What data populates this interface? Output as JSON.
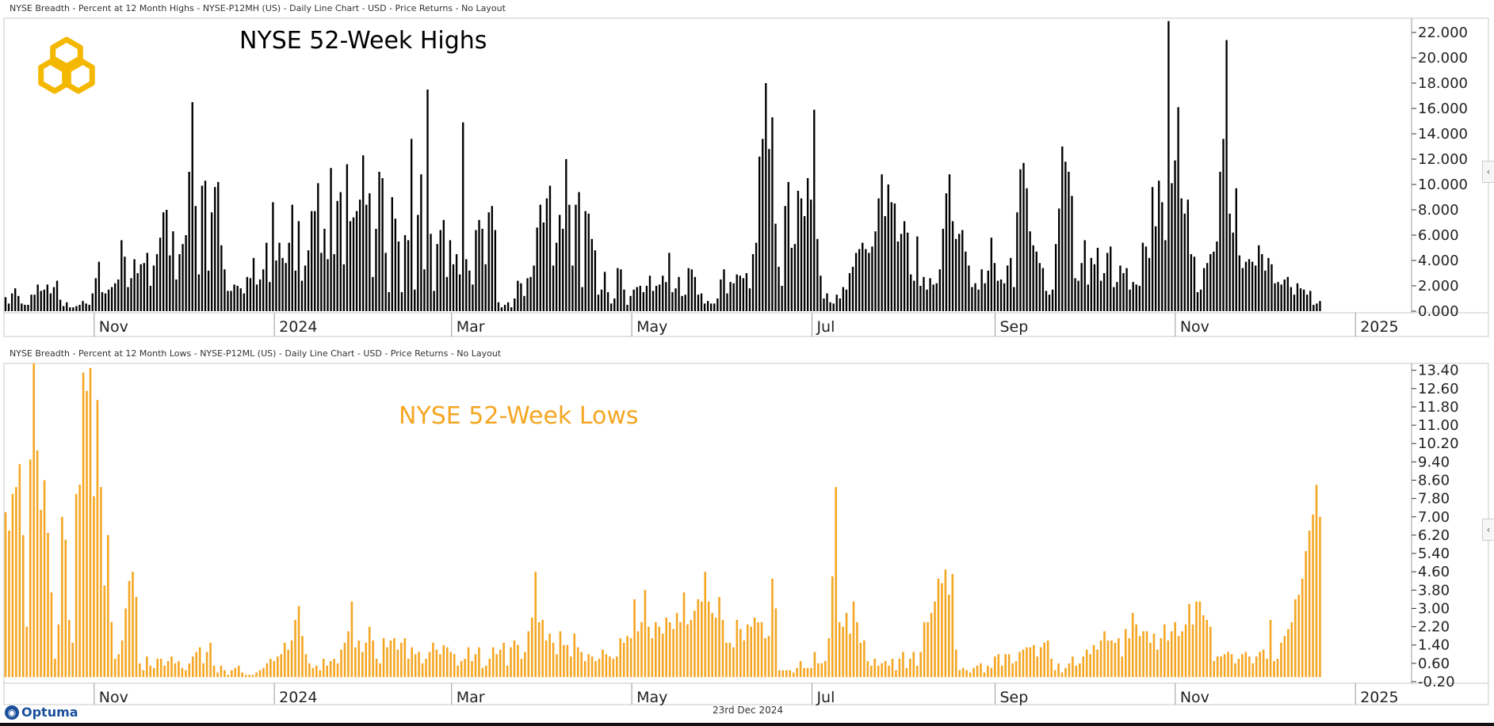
{
  "top": {
    "header": "NYSE Breadth - Percent at 12 Month Highs - NYSE-P12MH (US) - Daily Line Chart - USD - Price Returns - No Layout"
  },
  "bottom": {
    "header": "NYSE Breadth - Percent at 12 Month Lows - NYSE-P12ML (US) - Daily Line Chart - USD - Price Returns - No Layout"
  },
  "footer": {
    "date": "23rd Dec 2024",
    "brand": "Optuma"
  },
  "colors": {
    "highs": "#000000",
    "lows": "#f5a623",
    "logo": "#f5b800"
  },
  "icons": {
    "logo": "hexagon-knot-logo",
    "collapse": "chevron-left-icon",
    "brand": "optuma-logo-icon"
  },
  "chart_data": [
    {
      "type": "bar",
      "title": "NYSE 52-Week Highs",
      "x_tick_labels": [
        "Nov",
        "2024",
        "Mar",
        "May",
        "Jul",
        "Sep",
        "Nov",
        "2025"
      ],
      "y_tick_labels": [
        "22.000",
        "20.000",
        "18.000",
        "16.000",
        "14.000",
        "12.000",
        "10.000",
        "8.000",
        "6.000",
        "4.000",
        "2.000",
        "0.000"
      ],
      "ylim": [
        0,
        23
      ],
      "color": "#000000",
      "date_range": [
        "2023-10-02",
        "2024-12-20"
      ],
      "series": [
        {
          "values": [
            1.1,
            0.6,
            1.4,
            1.8,
            1.2,
            0.6,
            0.5,
            0.5,
            1.3,
            1.3,
            2.1,
            1.6,
            1.7,
            2.1,
            1.4,
            1.9,
            2.4,
            0.9,
            0.4,
            0.7,
            0.3,
            0.3,
            0.4,
            0.5,
            0.8,
            0.6,
            0.5,
            1.4,
            2.6,
            3.9,
            1.5,
            1.4,
            1.7,
            1.9,
            2.2,
            2.5,
            5.6,
            4.3,
            1.9,
            2.6,
            4.1,
            3.0,
            3.7,
            3.8,
            4.6,
            2.0,
            3.6,
            4.5,
            5.8,
            7.8,
            8.0,
            4.4,
            6.3,
            2.5,
            4.5,
            5.3,
            6.0,
            11.0,
            16.5,
            8.3,
            2.9,
            9.9,
            10.3,
            3.2,
            7.8,
            9.8,
            10.2,
            5.2,
            3.3,
            1.6,
            1.6,
            2.1,
            2.0,
            1.8,
            1.4,
            2.7,
            2.6,
            4.2,
            2.1,
            2.5,
            3.3,
            5.4,
            2.3,
            8.6,
            4.0,
            5.4,
            4.2,
            3.8,
            5.4,
            8.4,
            3.2,
            7.1,
            2.4,
            3.6,
            4.8,
            7.9,
            7.9,
            10.1,
            4.6,
            6.5,
            4.1,
            11.3,
            4.5,
            8.7,
            9.4,
            3.7,
            11.6,
            7.1,
            7.4,
            7.9,
            8.8,
            12.3,
            8.4,
            9.3,
            2.7,
            6.5,
            11.0,
            10.5,
            4.6,
            1.5,
            9.0,
            7.3,
            5.5,
            1.5,
            6.0,
            5.6,
            13.6,
            1.7,
            7.6,
            10.8,
            3.3,
            17.5,
            6.1,
            1.6,
            5.3,
            6.4,
            7.2,
            2.7,
            5.6,
            3.7,
            4.5,
            2.9,
            14.9,
            4.1,
            3.2,
            2.1,
            6.4,
            7.2,
            6.5,
            3.7,
            7.8,
            8.3,
            6.4,
            0.7,
            0.3,
            0.5,
            0.7,
            0.3,
            1.0,
            2.4,
            2.2,
            1.2,
            2.6,
            2.7,
            3.6,
            6.6,
            8.4,
            7.0,
            8.9,
            9.9,
            3.6,
            5.4,
            7.6,
            6.5,
            12.0,
            8.4,
            3.6,
            8.4,
            9.4,
            1.9,
            7.9,
            7.7,
            5.7,
            4.8,
            1.3,
            1.7,
            3.1,
            1.5,
            0.6,
            1.0,
            3.4,
            3.3,
            1.7,
            0.5,
            1.2,
            1.7,
            1.9,
            2.0,
            1.5,
            2.0,
            2.8,
            1.6,
            2.0,
            2.1,
            2.8,
            2.3,
            4.6,
            1.5,
            1.8,
            2.7,
            1.2,
            1.3,
            3.4,
            3.3,
            2.7,
            1.3,
            1.4,
            0.6,
            0.8,
            0.6,
            0.6,
            1.0,
            2.5,
            3.3,
            1.4,
            2.3,
            2.2,
            2.9,
            2.8,
            2.6,
            3.0,
            1.8,
            4.5,
            5.4,
            12.2,
            13.6,
            18.0,
            12.8,
            15.3,
            6.9,
            3.5,
            2.0,
            8.3,
            10.2,
            5.0,
            5.3,
            9.5,
            8.9,
            7.5,
            10.5,
            8.8,
            15.9,
            5.7,
            2.8,
            1.0,
            1.4,
            0.7,
            0.6,
            1.3,
            1.0,
            1.9,
            1.7,
            3.0,
            3.5,
            4.6,
            4.9,
            5.4,
            4.9,
            4.6,
            5.1,
            6.3,
            8.9,
            10.8,
            7.5,
            10.0,
            8.6,
            8.5,
            5.5,
            6.1,
            7.1,
            6.2,
            2.9,
            2.4,
            5.9,
            2.0,
            2.7,
            1.7,
            2.6,
            2.1,
            2.2,
            3.3,
            6.5,
            9.3,
            10.8,
            7.1,
            5.7,
            6.1,
            6.4,
            4.7,
            3.6,
            1.9,
            2.2,
            1.7,
            3.3,
            2.2,
            3.2,
            5.8,
            3.8,
            2.4,
            2.5,
            2.2,
            3.6,
            4.2,
            1.9,
            7.8,
            11.2,
            11.7,
            9.7,
            6.3,
            5.2,
            4.7,
            3.8,
            3.4,
            1.6,
            1.3,
            1.7,
            5.3,
            8.1,
            13.0,
            11.8,
            11.0,
            9.1,
            2.6,
            2.4,
            3.8,
            5.6,
            2.1,
            4.2,
            3.7,
            5.0,
            2.4,
            3.0,
            4.6,
            5.1,
            1.9,
            2.3,
            3.6,
            3.0,
            3.4,
            1.7,
            2.3,
            2.1,
            2.0,
            5.4,
            5.1,
            4.2,
            9.8,
            6.7,
            10.3,
            8.6,
            5.6,
            22.9,
            10.1,
            11.9,
            16.1,
            8.9,
            7.7,
            8.8,
            4.5,
            4.3,
            1.5,
            1.7,
            3.4,
            3.8,
            4.5,
            4.7,
            5.5,
            11.0,
            13.6,
            21.4,
            7.7,
            6.2,
            9.7,
            4.4,
            3.4,
            3.9,
            4.1,
            3.9,
            3.6,
            5.2,
            4.5,
            3.2,
            4.2,
            3.7,
            2.2,
            2.3,
            2.1,
            2.5,
            2.7,
            1.9,
            1.3,
            2.2,
            1.8,
            1.7,
            1.3,
            1.6,
            0.5,
            0.6,
            0.8
          ]
        }
      ]
    },
    {
      "type": "bar",
      "title": "NYSE 52-Week Lows",
      "x_tick_labels": [
        "Nov",
        "2024",
        "Mar",
        "May",
        "Jul",
        "Sep",
        "Nov",
        "2025"
      ],
      "y_tick_labels": [
        "13.40",
        "12.60",
        "11.80",
        "11.00",
        "10.20",
        "9.40",
        "8.60",
        "7.80",
        "7.00",
        "6.20",
        "5.40",
        "4.60",
        "3.80",
        "3.00",
        "2.20",
        "1.40",
        "0.60",
        "-0.20"
      ],
      "ylim": [
        -0.2,
        13.7
      ],
      "color": "#f5a623",
      "date_range": [
        "2023-10-02",
        "2024-12-20"
      ],
      "series": [
        {
          "values": [
            7.2,
            6.4,
            8.0,
            8.3,
            9.3,
            6.2,
            2.2,
            9.5,
            13.7,
            9.9,
            7.3,
            8.6,
            6.3,
            3.7,
            0.8,
            2.3,
            7.0,
            6.0,
            2.5,
            1.5,
            8.0,
            8.4,
            13.3,
            12.5,
            13.5,
            7.9,
            12.1,
            8.3,
            4.0,
            6.2,
            2.4,
            0.8,
            1.0,
            1.6,
            3.0,
            4.2,
            4.6,
            3.5,
            0.6,
            0.3,
            0.9,
            0.5,
            0.4,
            0.8,
            0.8,
            0.5,
            0.7,
            0.9,
            0.6,
            0.7,
            0.4,
            0.3,
            0.6,
            0.9,
            1.1,
            1.3,
            0.6,
            1.1,
            1.5,
            0.5,
            0.2,
            0.5,
            0.3,
            0.1,
            0.3,
            0.4,
            0.5,
            0.2,
            0.1,
            0.1,
            0.1,
            0.2,
            0.3,
            0.4,
            0.6,
            0.8,
            0.7,
            0.9,
            1.0,
            1.5,
            1.2,
            1.6,
            2.5,
            3.1,
            1.8,
            1.0,
            0.6,
            0.4,
            0.5,
            0.3,
            0.8,
            0.5,
            0.7,
            0.8,
            0.6,
            1.2,
            1.5,
            2.0,
            3.3,
            1.3,
            1.6,
            1.1,
            1.5,
            2.2,
            1.6,
            0.8,
            0.6,
            1.7,
            1.3,
            1.6,
            1.7,
            1.2,
            1.5,
            1.7,
            0.8,
            1.3,
            1.0,
            1.1,
            0.6,
            0.8,
            1.1,
            1.5,
            1.2,
            1.0,
            1.4,
            1.3,
            1.1,
            1.0,
            0.5,
            0.7,
            0.8,
            1.3,
            0.7,
            1.0,
            1.3,
            0.4,
            0.5,
            0.8,
            1.3,
            1.0,
            1.2,
            1.5,
            0.5,
            1.3,
            1.6,
            1.4,
            0.8,
            1.1,
            2.0,
            2.6,
            4.6,
            2.4,
            2.5,
            1.6,
            1.9,
            1.5,
            1.0,
            2.0,
            1.4,
            1.4,
            0.9,
            1.9,
            1.3,
            1.1,
            0.7,
            1.0,
            0.9,
            0.7,
            0.8,
            1.2,
            1.0,
            0.9,
            0.8,
            0.9,
            1.7,
            1.5,
            1.8,
            1.7,
            3.4,
            2.0,
            2.4,
            3.8,
            2.2,
            1.7,
            2.4,
            2.2,
            1.9,
            2.6,
            2.4,
            2.1,
            2.8,
            2.4,
            3.7,
            2.3,
            2.5,
            2.9,
            3.4,
            3.3,
            4.6,
            3.3,
            2.8,
            2.6,
            3.5,
            2.5,
            1.5,
            1.5,
            1.3,
            2.5,
            2.1,
            1.6,
            2.3,
            2.2,
            2.6,
            2.4,
            2.4,
            1.7,
            1.8,
            4.3,
            3.0,
            0.3,
            0.3,
            0.3,
            0.3,
            0.2,
            0.4,
            0.7,
            0.4,
            0.4,
            0.4,
            1.1,
            0.6,
            0.6,
            0.7,
            1.7,
            4.4,
            8.3,
            2.4,
            2.2,
            2.8,
            1.9,
            3.3,
            2.4,
            1.5,
            1.6,
            0.7,
            0.5,
            0.8,
            0.5,
            0.6,
            0.7,
            0.5,
            0.8,
            0.3,
            0.8,
            1.1,
            0.4,
            0.8,
            1.1,
            0.5,
            1.1,
            2.4,
            2.4,
            2.8,
            3.3,
            4.3,
            4.1,
            4.7,
            3.6,
            4.5,
            1.2,
            0.3,
            0.4,
            0.3,
            0.2,
            0.4,
            0.5,
            0.6,
            0.2,
            0.5,
            0.4,
            0.9,
            1.0,
            0.5,
            1.0,
            1.0,
            0.6,
            0.7,
            1.1,
            1.2,
            1.3,
            1.3,
            1.4,
            0.9,
            1.3,
            1.5,
            1.6,
            0.8,
            0.3,
            0.6,
            0.2,
            0.4,
            0.6,
            0.9,
            0.5,
            0.6,
            0.9,
            1.2,
            1.0,
            1.4,
            1.2,
            1.6,
            2.0,
            1.6,
            1.6,
            1.5,
            1.7,
            0.9,
            2.1,
            1.7,
            2.8,
            2.3,
            1.8,
            2.0,
            2.0,
            1.5,
            1.9,
            1.2,
            1.7,
            2.3,
            1.6,
            2.0,
            2.4,
            1.8,
            2.0,
            2.3,
            3.2,
            2.3,
            3.3,
            3.3,
            2.7,
            2.5,
            2.2,
            0.7,
            0.9,
            0.9,
            1.0,
            1.1,
            1.0,
            0.6,
            0.8,
            1.0,
            1.1,
            0.9,
            0.6,
            0.9,
            1.1,
            1.2,
            0.8,
            2.5,
            0.7,
            0.8,
            1.5,
            1.8,
            2.1,
            2.4,
            3.4,
            3.6,
            4.3,
            5.5,
            6.4,
            7.1,
            8.4,
            7.0
          ]
        }
      ]
    }
  ]
}
